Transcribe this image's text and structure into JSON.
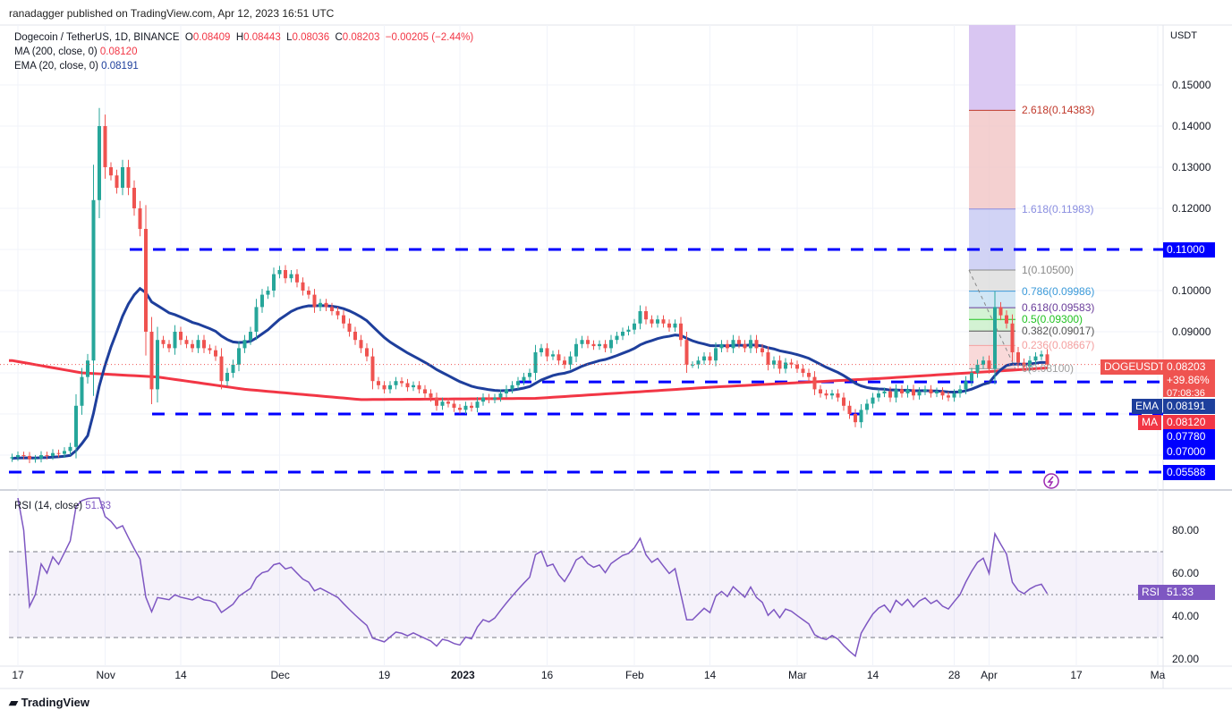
{
  "attribution": "ranadagger published on TradingView.com, Apr 12, 2023 16:51 UTC",
  "legend": {
    "symbol": "Dogecoin / TetherUS, 1D, BINANCE",
    "o_label": "O",
    "o": "0.08409",
    "h_label": "H",
    "h": "0.08443",
    "l_label": "L",
    "l": "0.08036",
    "c_label": "C",
    "c": "0.08203",
    "change": "−0.00205 (−2.44%)",
    "ma_label": "MA (200, close, 0)",
    "ma_value": "0.08120",
    "ema_label": "EMA (20, close, 0)",
    "ema_value": "0.08191",
    "rsi_label": "RSI (14, close)",
    "rsi_value": "51.33"
  },
  "price_axis": {
    "unit": "USDT",
    "ticks": [
      "0.15000",
      "0.14000",
      "0.13000",
      "0.12000",
      "0.10000",
      "0.09000"
    ]
  },
  "tags": {
    "level_011": "0.11000",
    "symbol": "DOGEUSDT",
    "price": "0.08203",
    "pct": "+39.86%",
    "countdown": "07:08:36",
    "ema_label": "EMA",
    "ema": "0.08191",
    "ma_label": "MA",
    "ma": "0.08120",
    "level_0778": "0.07780",
    "level_07": "0.07000",
    "level_05588": "0.05588",
    "rsi_label": "RSI",
    "rsi": "51.33"
  },
  "fib": {
    "levels": [
      {
        "ratio": 0,
        "price": 0.081,
        "label": "0(0.08100)",
        "color": "#9e9e9e"
      },
      {
        "ratio": 0.236,
        "price": 0.08667,
        "label": "0.236(0.08667)",
        "color": "#f4a0a0"
      },
      {
        "ratio": 0.382,
        "price": 0.09017,
        "label": "0.382(0.09017)",
        "color": "#555555"
      },
      {
        "ratio": 0.5,
        "price": 0.093,
        "label": "0.5(0.09300)",
        "color": "#22c322"
      },
      {
        "ratio": 0.618,
        "price": 0.09583,
        "label": "0.618(0.09583)",
        "color": "#6a3d9a"
      },
      {
        "ratio": 0.786,
        "price": 0.09986,
        "label": "0.786(0.09986)",
        "color": "#3b9ad9"
      },
      {
        "ratio": 1,
        "price": 0.105,
        "label": "1(0.10500)",
        "color": "#888888"
      },
      {
        "ratio": 1.618,
        "price": 0.11983,
        "label": "1.618(0.11983)",
        "color": "#8a8ee0"
      },
      {
        "ratio": 2.618,
        "price": 0.14383,
        "label": "2.618(0.14383)",
        "color": "#c0392b"
      }
    ]
  },
  "colors": {
    "up": "#26a69a",
    "down": "#ef5350",
    "ema": "#1e3f9c",
    "ma": "#f23645",
    "level": "#0000ff",
    "rsi": "#7e57c2"
  },
  "time_axis": [
    {
      "day": 1,
      "label": "17"
    },
    {
      "day": 16,
      "label": "Nov"
    },
    {
      "day": 29,
      "label": "14"
    },
    {
      "day": 46,
      "label": "Dec"
    },
    {
      "day": 64,
      "label": "19"
    },
    {
      "day": 77,
      "label": "2023"
    },
    {
      "day": 92,
      "label": "16"
    },
    {
      "day": 107,
      "label": "Feb"
    },
    {
      "day": 120,
      "label": "14"
    },
    {
      "day": 135,
      "label": "Mar"
    },
    {
      "day": 148,
      "label": "14"
    },
    {
      "day": 162,
      "label": "28"
    },
    {
      "day": 168,
      "label": "Apr"
    },
    {
      "day": 183,
      "label": "17"
    },
    {
      "day": 197,
      "label": "Ma"
    }
  ],
  "rsi_axis": [
    "80.00",
    "60.00",
    "40.00",
    "20.00"
  ],
  "footer": "TradingView",
  "chart_data": {
    "type": "candlestick",
    "start_date": "2022-10-16",
    "first_open": 0.0592,
    "close": [
      0.0595,
      0.06,
      0.0598,
      0.059,
      0.0592,
      0.06,
      0.0598,
      0.0605,
      0.0603,
      0.061,
      0.062,
      0.072,
      0.079,
      0.083,
      0.122,
      0.14,
      0.13,
      0.128,
      0.125,
      0.13,
      0.125,
      0.12,
      0.115,
      0.09,
      0.076,
      0.088,
      0.087,
      0.086,
      0.09,
      0.088,
      0.087,
      0.086,
      0.088,
      0.086,
      0.0855,
      0.084,
      0.078,
      0.08,
      0.082,
      0.086,
      0.088,
      0.09,
      0.096,
      0.099,
      0.1,
      0.104,
      0.105,
      0.103,
      0.104,
      0.102,
      0.1,
      0.099,
      0.096,
      0.097,
      0.096,
      0.095,
      0.094,
      0.092,
      0.09,
      0.088,
      0.086,
      0.084,
      0.078,
      0.077,
      0.076,
      0.077,
      0.078,
      0.0775,
      0.0765,
      0.077,
      0.076,
      0.075,
      0.074,
      0.072,
      0.073,
      0.0725,
      0.0715,
      0.071,
      0.072,
      0.0715,
      0.073,
      0.074,
      0.0735,
      0.074,
      0.075,
      0.076,
      0.077,
      0.078,
      0.079,
      0.08,
      0.085,
      0.086,
      0.084,
      0.0845,
      0.083,
      0.082,
      0.084,
      0.087,
      0.088,
      0.087,
      0.0865,
      0.087,
      0.086,
      0.088,
      0.089,
      0.09,
      0.0905,
      0.092,
      0.095,
      0.093,
      0.092,
      0.093,
      0.092,
      0.091,
      0.092,
      0.088,
      0.082,
      0.082,
      0.083,
      0.084,
      0.083,
      0.086,
      0.087,
      0.086,
      0.088,
      0.087,
      0.086,
      0.088,
      0.086,
      0.085,
      0.082,
      0.083,
      0.081,
      0.0825,
      0.082,
      0.081,
      0.08,
      0.079,
      0.076,
      0.075,
      0.0745,
      0.075,
      0.074,
      0.072,
      0.07,
      0.068,
      0.071,
      0.0725,
      0.074,
      0.075,
      0.0755,
      0.074,
      0.076,
      0.075,
      0.076,
      0.0745,
      0.0755,
      0.076,
      0.075,
      0.0755,
      0.0745,
      0.074,
      0.075,
      0.076,
      0.078,
      0.08,
      0.082,
      0.083,
      0.081,
      0.096,
      0.094,
      0.092,
      0.085,
      0.0825,
      0.0815,
      0.083,
      0.084,
      0.0845,
      0.08203
    ],
    "ma200": [
      [
        0,
        0.083
      ],
      [
        12,
        0.08
      ],
      [
        25,
        0.079
      ],
      [
        40,
        0.076
      ],
      [
        60,
        0.0735
      ],
      [
        90,
        0.0738
      ],
      [
        120,
        0.0765
      ],
      [
        150,
        0.0787
      ],
      [
        178,
        0.0812
      ]
    ],
    "levels": [
      0.11,
      0.0778,
      0.07,
      0.05588
    ],
    "rsi_bands": [
      30,
      50,
      70
    ]
  }
}
